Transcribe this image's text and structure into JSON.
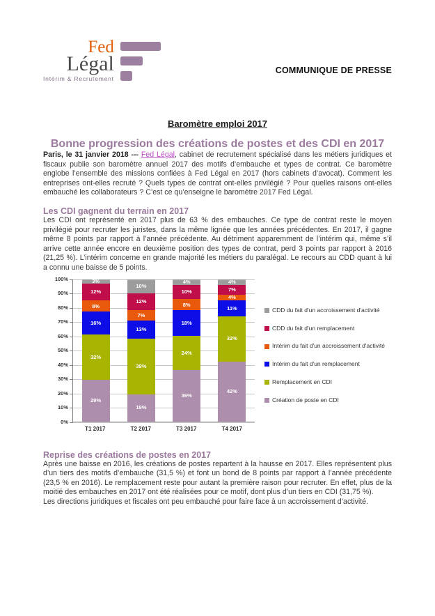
{
  "theme": {
    "accent_heading": "#9b7a9e",
    "link_color": "#bb4ec4",
    "logo_orange": "#e2600c",
    "logo_gray": "#4a4a4c",
    "logo_mauve": "#9d80a0",
    "logo_tagline_color": "#80708a"
  },
  "header": {
    "logo": {
      "line1": "Fed",
      "line2": "Légal",
      "tagline": "Intérim & Recrutement"
    },
    "press_label": "COMMUNIQUE DE PRESSE"
  },
  "title": {
    "subtitle": "Baromètre emploi 2017",
    "headline": "Bonne progression des créations de postes et des CDI en 2017"
  },
  "intro": {
    "date_prefix": "Paris, le 31 janvier 2018 ---",
    "link_text": "Fed Légal",
    "body": ", cabinet de recrutement spécialisé dans les métiers juridiques et fiscaux publie son baromètre annuel 2017 des motifs d’embauche et types de contrat. Ce baromètre englobe l’ensemble des missions confiées à Fed Légal en 2017 (hors cabinets d’avocat). Comment les entreprises ont-elles recruté ? Quels types de contrat ont-elles privilégié ? Pour quelles raisons ont-elles embauché les collaborateurs ? C’est ce qu’enseigne le baromètre 2017 Fed Légal."
  },
  "sections": {
    "cdi": {
      "heading": "Les CDI gagnent du terrain en 2017",
      "body": "Les CDI ont représenté en 2017 plus de 63 % des embauches. Ce type de contrat reste le moyen privilégié pour recruter les juristes, dans la même lignée que les années précédentes. En 2017, il gagne même 8 points par rapport à l’année précédente. Au détriment apparemment de l’intérim qui, même s’il arrive cette année encore en deuxième position des types de contrat, perd 3 points par rapport à 2016 (21,25 %). L’intérim concerne en grande majorité les métiers du paralégal. Le recours au CDD quant à lui a connu une baisse de 5 points."
    },
    "reprise": {
      "heading": "Reprise des créations de postes en 2017",
      "body": "Après une baisse en 2016, les créations de postes repartent à la hausse en 2017. Elles représentent plus d’un tiers des motifs d’embauche (31,5 %) et font un bond de 8 points par rapport à l’année précédente (23,5 % en 2016). Le remplacement reste pour autant la première raison pour recruter. En effet, plus de la moitié des embauches en 2017 ont été réalisées pour ce motif, dont plus d’un tiers en CDI (31,75 %).",
      "body2": "Les directions juridiques et fiscales ont peu embauché pour faire face à un accroissement d’activité."
    }
  },
  "chart_data": {
    "type": "bar",
    "stacked": true,
    "unit": "%",
    "title": "",
    "xlabel": "",
    "ylabel": "",
    "grid": true,
    "legend_position": "right",
    "ylim": [
      0,
      100
    ],
    "yticks": [
      "0%",
      "10%",
      "20%",
      "30%",
      "40%",
      "50%",
      "60%",
      "70%",
      "80%",
      "90%",
      "100%"
    ],
    "categories": [
      "T1 2017",
      "T2 2017",
      "T3 2017",
      "T4 2017"
    ],
    "series": [
      {
        "name": "CDD du fait d'un accroissement d'activité",
        "color": "#9c9c9c",
        "values": [
          3,
          10,
          4,
          4
        ]
      },
      {
        "name": "CDD du fait d'un remplacement",
        "color": "#bf0e49",
        "values": [
          12,
          12,
          10,
          7
        ]
      },
      {
        "name": "Intérim du fait d'un accroissement d'activité",
        "color": "#e9590c",
        "values": [
          8,
          7,
          8,
          4
        ]
      },
      {
        "name": "Intérim du fait d'un remplacement",
        "color": "#0d0de8",
        "values": [
          16,
          13,
          18,
          11
        ]
      },
      {
        "name": "Remplacement en CDI",
        "color": "#a8b400",
        "values": [
          32,
          39,
          24,
          32
        ]
      },
      {
        "name": "Création de poste en CDI",
        "color": "#ad8fad",
        "values": [
          29,
          19,
          36,
          42
        ]
      }
    ]
  }
}
